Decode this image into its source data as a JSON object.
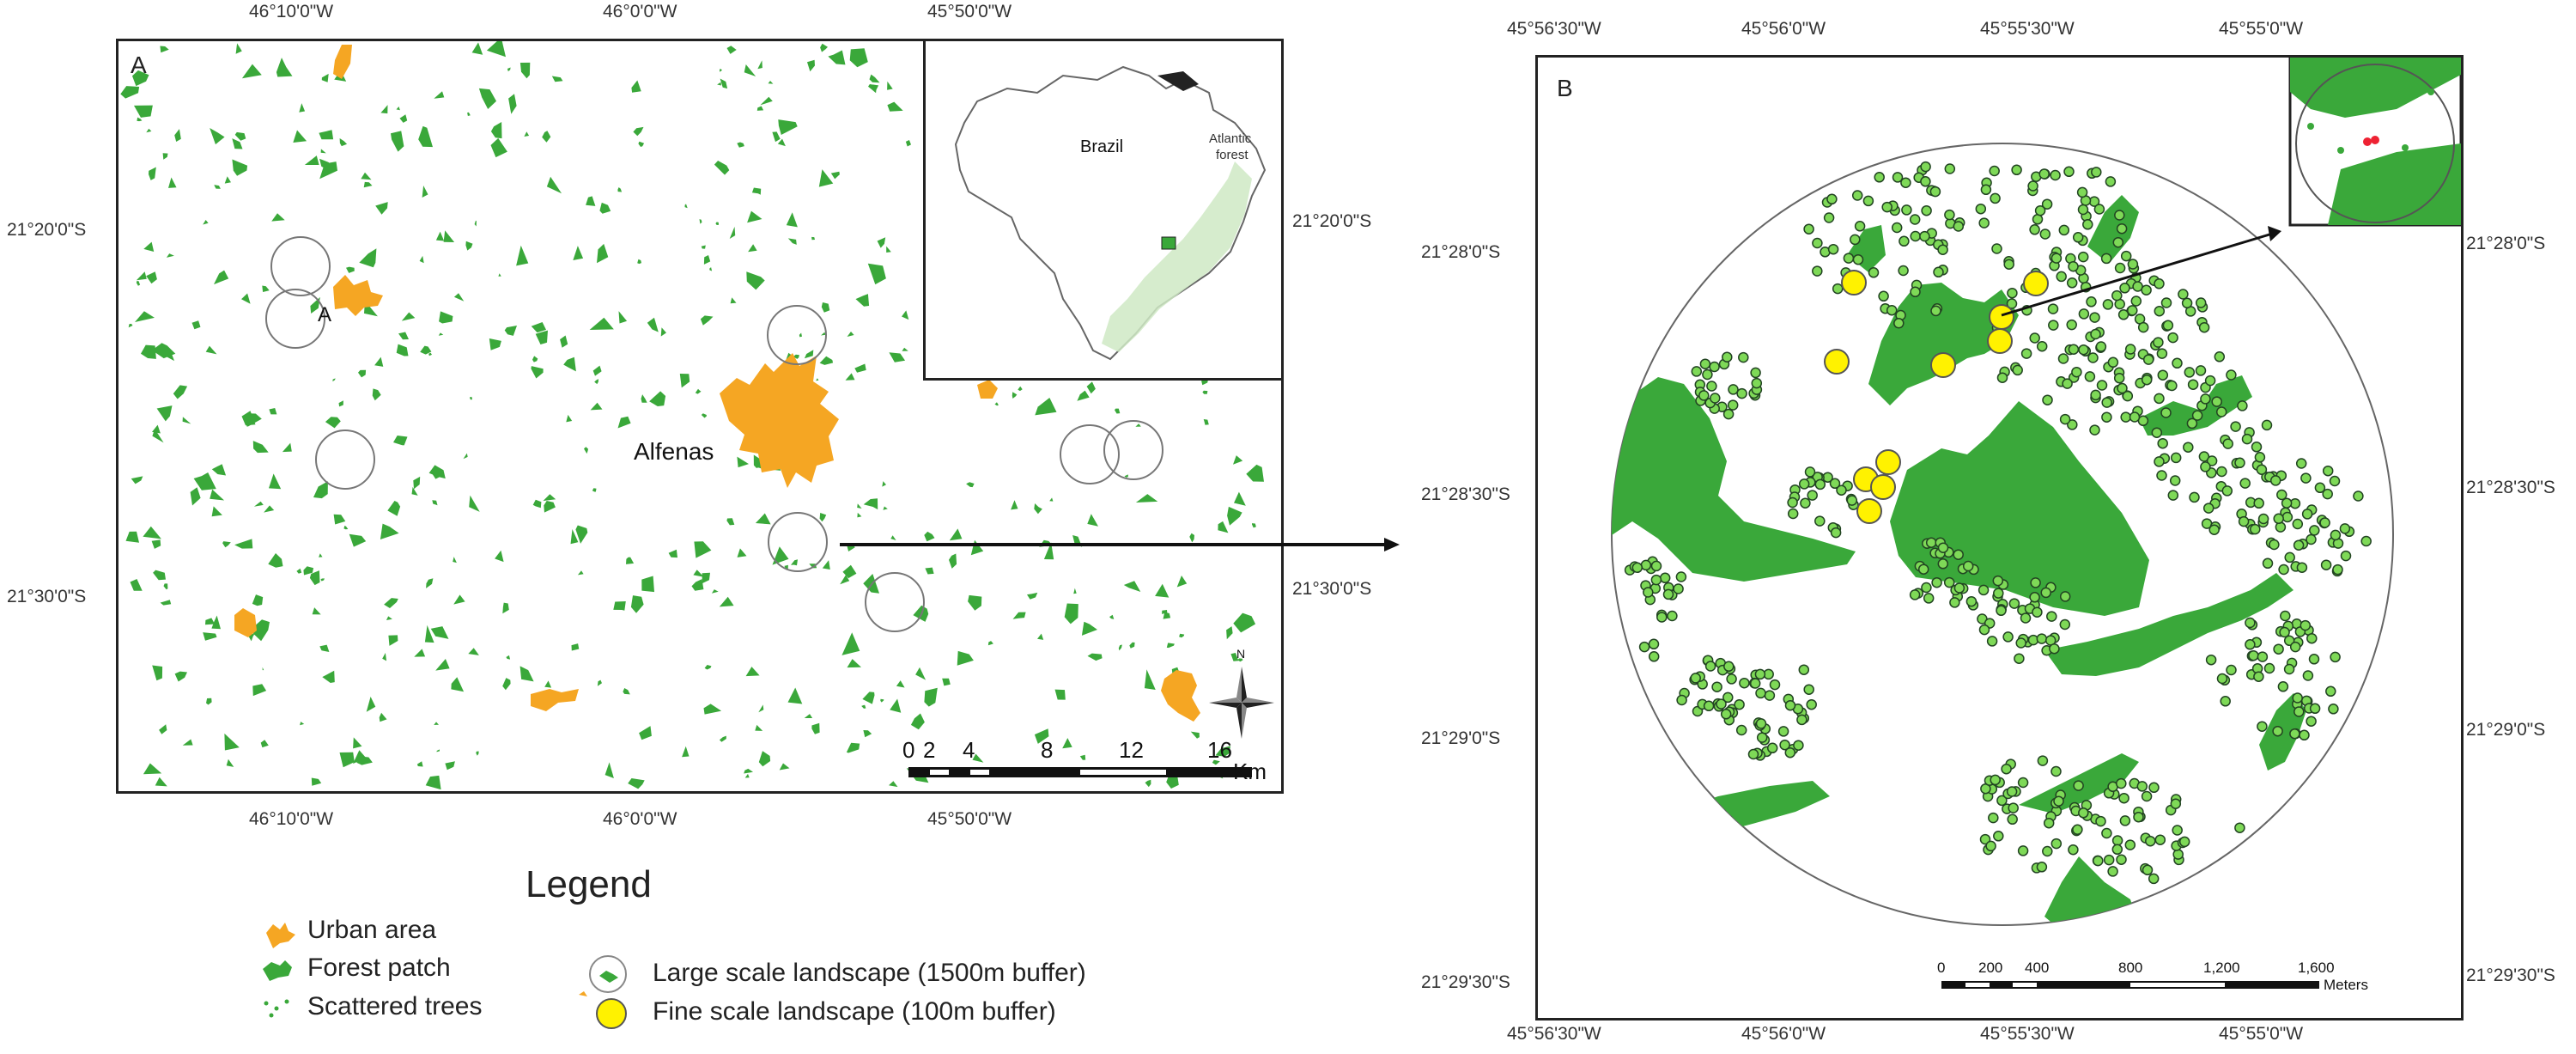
{
  "panel_a": {
    "label": "A",
    "top_lon": [
      "46°10'0\"W",
      "46°0'0\"W",
      "45°50'0\"W"
    ],
    "bottom_lon": [
      "46°10'0\"W",
      "46°0'0\"W",
      "45°50'0\"W"
    ],
    "left_lat": [
      "21°20'0\"S",
      "21°30'0\"S"
    ],
    "right_lat": [
      "21°20'0\"S",
      "21°30'0\"S"
    ],
    "city_label": "Alfenas",
    "point_label": "A",
    "inset_country": "Brazil",
    "inset_region_line1": "Atlantic",
    "inset_region_line2": "forest",
    "north_label": "N",
    "scale_ticks": [
      "0",
      "2",
      "4",
      "8",
      "12",
      "16"
    ],
    "scale_unit": "Km"
  },
  "panel_b": {
    "label": "B",
    "top_lon": [
      "45°56'30\"W",
      "45°56'0\"W",
      "45°55'30\"W",
      "45°55'0\"W"
    ],
    "bottom_lon": [
      "45°56'30\"W",
      "45°56'0\"W",
      "45°55'30\"W",
      "45°55'0\"W"
    ],
    "left_lat": [
      "21°28'0\"S",
      "21°28'30\"S",
      "21°29'0\"S",
      "21°29'30\"S"
    ],
    "right_lat": [
      "21°28'0\"S",
      "21°28'30\"S",
      "21°29'0\"S",
      "21°29'30\"S"
    ],
    "scale_ticks": [
      "0",
      "200",
      "400",
      "800",
      "1,200",
      "1,600"
    ],
    "scale_unit": "Meters"
  },
  "legend": {
    "title": "Legend",
    "items": {
      "urban": "Urban area",
      "forest": "Forest patch",
      "trees": "Scattered trees",
      "large": "Large scale landscape (1500m buffer)",
      "fine": "Fine scale landscape (100m buffer)"
    }
  },
  "colors": {
    "forest": "#3aa83a",
    "urban": "#f5a623",
    "point_fill": "#7ed957",
    "fine_fill": "#fff200",
    "frame": "#222222"
  }
}
